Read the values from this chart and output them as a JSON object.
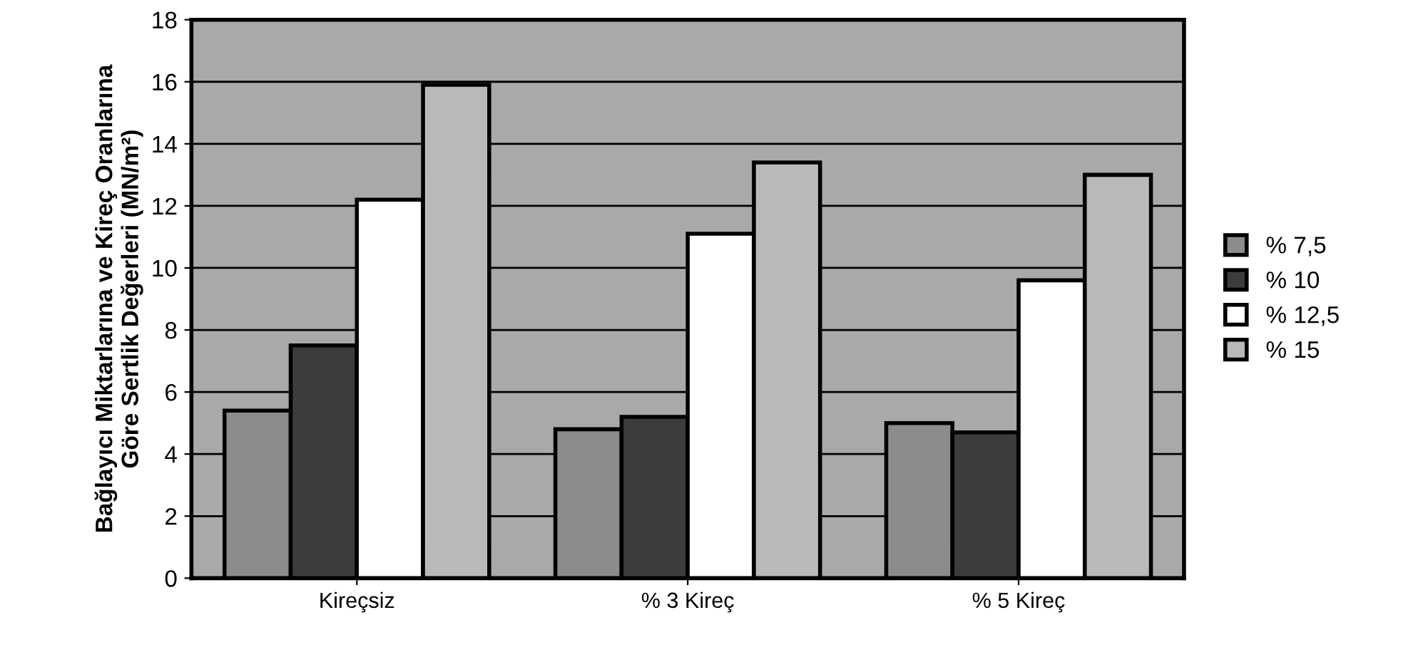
{
  "chart_data": {
    "type": "bar",
    "ylabel": "Bağlayıcı Miktarlarına ve Kireç Oranlarına\nGöre Sertlik Değerleri (MN/m²)",
    "categories": [
      "Kireçsiz",
      "% 3 Kireç",
      "% 5 Kireç"
    ],
    "series": [
      {
        "name": "% 7,5",
        "color": "#8c8c8c",
        "values": [
          5.4,
          4.8,
          5.0
        ]
      },
      {
        "name": "% 10",
        "color": "#3c3c3c",
        "values": [
          7.5,
          5.2,
          4.7
        ]
      },
      {
        "name": "% 12,5",
        "color": "#ffffff",
        "values": [
          12.2,
          11.1,
          9.6
        ]
      },
      {
        "name": "% 15",
        "color": "#b9b9b9",
        "values": [
          15.9,
          13.4,
          13.0
        ]
      }
    ],
    "ylim": [
      0,
      18
    ],
    "yticks": [
      0,
      2,
      4,
      6,
      8,
      10,
      12,
      14,
      16,
      18
    ],
    "grid": "y",
    "legend": "right"
  }
}
